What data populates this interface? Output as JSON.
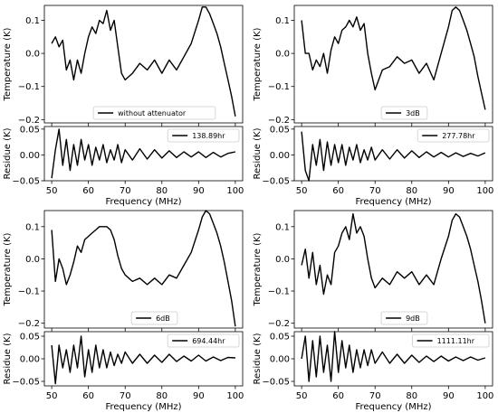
{
  "chart_data": [
    {
      "type": "line",
      "panel": "top-left",
      "xlim": [
        48,
        102
      ],
      "xticks": [
        50,
        60,
        70,
        80,
        90,
        100
      ],
      "temperature": {
        "ylabel": "Temperature (K)",
        "ylim": [
          -0.21,
          0.145
        ],
        "yticks": [
          "0.1",
          "0.0",
          "−0.1",
          "−0.2"
        ],
        "ytick_values": [
          0.1,
          0.0,
          -0.1,
          -0.2
        ],
        "legend": "without attenuator",
        "legend_loc": "lower center",
        "x": [
          50,
          51,
          52,
          53,
          54,
          55,
          56,
          57,
          58,
          59,
          60,
          61,
          62,
          63,
          64,
          65,
          66,
          67,
          68,
          69,
          70,
          72,
          74,
          76,
          78,
          80,
          82,
          84,
          86,
          88,
          90,
          91,
          92,
          93,
          94,
          95,
          96,
          97,
          98,
          99,
          100
        ],
        "y": [
          0.03,
          0.05,
          0.02,
          0.04,
          -0.05,
          -0.02,
          -0.08,
          -0.02,
          -0.06,
          0.0,
          0.05,
          0.08,
          0.06,
          0.1,
          0.09,
          0.13,
          0.07,
          0.1,
          0.02,
          -0.06,
          -0.08,
          -0.06,
          -0.03,
          -0.05,
          -0.02,
          -0.06,
          -0.02,
          -0.05,
          -0.01,
          0.03,
          0.1,
          0.14,
          0.14,
          0.12,
          0.09,
          0.06,
          0.02,
          -0.03,
          -0.08,
          -0.13,
          -0.19
        ]
      },
      "residue": {
        "ylabel": "Residue (K)",
        "xlabel": "Frequency (MHz)",
        "ylim": [
          -0.05,
          0.055
        ],
        "yticks": [
          "0.05",
          "0.00",
          "−0.05"
        ],
        "ytick_values": [
          0.05,
          0.0,
          -0.05
        ],
        "legend": "138.89hr",
        "legend_loc": "upper right",
        "x": [
          50,
          51,
          52,
          53,
          54,
          55,
          56,
          57,
          58,
          59,
          60,
          61,
          62,
          63,
          64,
          65,
          66,
          67,
          68,
          69,
          70,
          72,
          74,
          76,
          78,
          80,
          82,
          84,
          86,
          88,
          90,
          92,
          94,
          96,
          98,
          100
        ],
        "y": [
          -0.045,
          0.01,
          0.05,
          -0.02,
          0.03,
          -0.03,
          0.02,
          -0.02,
          0.03,
          -0.01,
          0.02,
          -0.02,
          0.015,
          -0.01,
          0.02,
          -0.015,
          0.01,
          -0.01,
          0.02,
          -0.015,
          0.01,
          -0.01,
          0.012,
          -0.008,
          0.01,
          -0.006,
          0.008,
          -0.005,
          0.006,
          -0.004,
          0.006,
          -0.005,
          0.005,
          -0.004,
          0.003,
          0.006
        ]
      }
    },
    {
      "type": "line",
      "panel": "top-right",
      "xlim": [
        48,
        102
      ],
      "xticks": [
        50,
        60,
        70,
        80,
        90,
        100
      ],
      "temperature": {
        "ylabel": "Temperature (K)",
        "ylim": [
          -0.21,
          0.145
        ],
        "yticks": [
          "0.1",
          "0.0",
          "−0.1",
          "−0.2"
        ],
        "ytick_values": [
          0.1,
          0.0,
          -0.1,
          -0.2
        ],
        "legend": "3dB",
        "legend_loc": "lower center",
        "x": [
          50,
          51,
          52,
          53,
          54,
          55,
          56,
          57,
          58,
          59,
          60,
          61,
          62,
          63,
          64,
          65,
          66,
          67,
          68,
          69,
          70,
          72,
          74,
          76,
          78,
          80,
          82,
          84,
          86,
          88,
          90,
          91,
          92,
          93,
          94,
          95,
          96,
          97,
          98,
          99,
          100
        ],
        "y": [
          0.1,
          0.0,
          0.0,
          -0.05,
          -0.02,
          -0.04,
          0.0,
          -0.06,
          0.01,
          0.05,
          0.03,
          0.07,
          0.08,
          0.1,
          0.08,
          0.11,
          0.07,
          0.09,
          0.0,
          -0.06,
          -0.11,
          -0.05,
          -0.04,
          -0.01,
          -0.03,
          -0.02,
          -0.06,
          -0.03,
          -0.08,
          0.0,
          0.08,
          0.13,
          0.14,
          0.13,
          0.1,
          0.07,
          0.03,
          -0.01,
          -0.07,
          -0.12,
          -0.17
        ]
      },
      "residue": {
        "ylabel": "Residue (K)",
        "xlabel": "Frequency (MHz)",
        "ylim": [
          -0.05,
          0.055
        ],
        "yticks": [
          "0.05",
          "0.00",
          "−0.05"
        ],
        "ytick_values": [
          0.05,
          0.0,
          -0.05
        ],
        "legend": "277.78hr",
        "legend_loc": "upper right",
        "x": [
          50,
          51,
          52,
          53,
          54,
          55,
          56,
          57,
          58,
          59,
          60,
          61,
          62,
          63,
          64,
          65,
          66,
          67,
          68,
          69,
          70,
          72,
          74,
          76,
          78,
          80,
          82,
          84,
          86,
          88,
          90,
          92,
          94,
          96,
          98,
          100
        ],
        "y": [
          0.045,
          -0.03,
          -0.05,
          0.02,
          -0.02,
          0.03,
          -0.03,
          0.025,
          -0.02,
          0.02,
          -0.015,
          0.02,
          -0.02,
          0.015,
          -0.01,
          0.02,
          -0.015,
          0.01,
          -0.01,
          0.015,
          -0.01,
          0.01,
          -0.008,
          0.01,
          -0.006,
          0.008,
          -0.005,
          0.006,
          -0.004,
          0.005,
          -0.004,
          0.004,
          -0.003,
          0.003,
          -0.002,
          0.004
        ]
      }
    },
    {
      "type": "line",
      "panel": "bottom-left",
      "xlim": [
        48,
        102
      ],
      "xticks": [
        50,
        60,
        70,
        80,
        90,
        100
      ],
      "temperature": {
        "ylabel": "Temperature (K)",
        "ylim": [
          -0.215,
          0.15
        ],
        "yticks": [
          "0.1",
          "0.0",
          "−0.1",
          "−0.2"
        ],
        "ytick_values": [
          0.1,
          0.0,
          -0.1,
          -0.2
        ],
        "legend": "6dB",
        "legend_loc": "lower center",
        "x": [
          50,
          51,
          52,
          53,
          54,
          55,
          56,
          57,
          58,
          59,
          60,
          61,
          62,
          63,
          64,
          65,
          66,
          67,
          68,
          69,
          70,
          72,
          74,
          76,
          78,
          80,
          82,
          84,
          86,
          88,
          90,
          91,
          92,
          93,
          94,
          95,
          96,
          97,
          98,
          99,
          100
        ],
        "y": [
          0.09,
          -0.07,
          0.0,
          -0.03,
          -0.08,
          -0.05,
          -0.01,
          0.04,
          0.02,
          0.06,
          0.07,
          0.08,
          0.09,
          0.1,
          0.1,
          0.1,
          0.09,
          0.06,
          0.01,
          -0.03,
          -0.05,
          -0.07,
          -0.06,
          -0.08,
          -0.06,
          -0.08,
          -0.05,
          -0.06,
          -0.02,
          0.02,
          0.09,
          0.13,
          0.15,
          0.14,
          0.11,
          0.08,
          0.04,
          -0.01,
          -0.07,
          -0.13,
          -0.21
        ]
      },
      "residue": {
        "ylabel": "Residue (K)",
        "xlabel": "Frequency (MHz)",
        "ylim": [
          -0.06,
          0.06
        ],
        "yticks": [
          "0.05",
          "0.00",
          "−0.05"
        ],
        "ytick_values": [
          0.05,
          0.0,
          -0.05
        ],
        "legend": "694.44hr",
        "legend_loc": "upper right",
        "x": [
          50,
          51,
          52,
          53,
          54,
          55,
          56,
          57,
          58,
          59,
          60,
          61,
          62,
          63,
          64,
          65,
          66,
          67,
          68,
          69,
          70,
          72,
          74,
          76,
          78,
          80,
          82,
          84,
          86,
          88,
          90,
          92,
          94,
          96,
          98,
          100
        ],
        "y": [
          0.03,
          -0.055,
          0.03,
          -0.02,
          0.02,
          -0.03,
          0.03,
          -0.02,
          0.05,
          -0.04,
          0.02,
          -0.03,
          0.03,
          -0.02,
          0.02,
          -0.02,
          0.015,
          -0.015,
          0.01,
          -0.01,
          0.015,
          -0.01,
          0.01,
          -0.01,
          0.008,
          -0.008,
          0.01,
          -0.006,
          0.006,
          -0.005,
          0.008,
          -0.005,
          0.004,
          -0.004,
          0.003,
          0.002
        ]
      }
    },
    {
      "type": "line",
      "panel": "bottom-right",
      "xlim": [
        48,
        102
      ],
      "xticks": [
        50,
        60,
        70,
        80,
        90,
        100
      ],
      "temperature": {
        "ylabel": "Temperature (K)",
        "ylim": [
          -0.215,
          0.15
        ],
        "yticks": [
          "0.1",
          "0.0",
          "−0.1",
          "−0.2"
        ],
        "ytick_values": [
          0.1,
          0.0,
          -0.1,
          -0.2
        ],
        "legend": "9dB",
        "legend_loc": "lower center",
        "x": [
          50,
          51,
          52,
          53,
          54,
          55,
          56,
          57,
          58,
          59,
          60,
          61,
          62,
          63,
          64,
          65,
          66,
          67,
          68,
          69,
          70,
          72,
          74,
          76,
          78,
          80,
          82,
          84,
          86,
          88,
          90,
          91,
          92,
          93,
          94,
          95,
          96,
          97,
          98,
          99,
          100
        ],
        "y": [
          -0.02,
          0.03,
          -0.06,
          0.02,
          -0.08,
          -0.02,
          -0.11,
          -0.05,
          -0.08,
          0.02,
          0.04,
          0.08,
          0.1,
          0.06,
          0.14,
          0.08,
          0.1,
          0.07,
          0.0,
          -0.06,
          -0.09,
          -0.06,
          -0.08,
          -0.04,
          -0.06,
          -0.04,
          -0.08,
          -0.05,
          -0.08,
          0.0,
          0.07,
          0.12,
          0.14,
          0.13,
          0.1,
          0.07,
          0.03,
          -0.02,
          -0.07,
          -0.13,
          -0.2
        ]
      },
      "residue": {
        "ylabel": "Residue (K)",
        "xlabel": "Frequency (MHz)",
        "ylim": [
          -0.06,
          0.06
        ],
        "yticks": [
          "0.05",
          "0.00",
          "−0.05"
        ],
        "ytick_values": [
          0.05,
          0.0,
          -0.05
        ],
        "legend": "1111.11hr",
        "legend_loc": "upper right",
        "x": [
          50,
          51,
          52,
          53,
          54,
          55,
          56,
          57,
          58,
          59,
          60,
          61,
          62,
          63,
          64,
          65,
          66,
          67,
          68,
          69,
          70,
          72,
          74,
          76,
          78,
          80,
          82,
          84,
          86,
          88,
          90,
          92,
          94,
          96,
          98,
          100
        ],
        "y": [
          0.0,
          0.05,
          -0.05,
          0.04,
          -0.04,
          0.05,
          -0.03,
          0.03,
          -0.05,
          0.06,
          -0.03,
          0.04,
          -0.02,
          0.03,
          -0.03,
          0.02,
          -0.02,
          0.02,
          -0.015,
          0.02,
          -0.01,
          0.015,
          -0.01,
          0.01,
          -0.01,
          0.008,
          -0.008,
          0.006,
          -0.006,
          0.006,
          -0.005,
          0.004,
          -0.004,
          0.004,
          -0.003,
          0.002
        ]
      }
    }
  ]
}
